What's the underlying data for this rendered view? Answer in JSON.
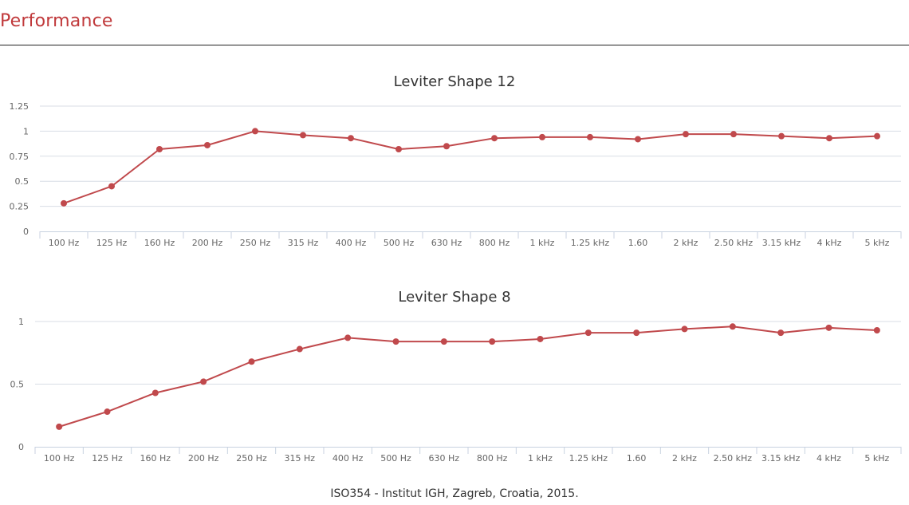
{
  "header": {
    "title": "Performance"
  },
  "footer": {
    "note": "ISO354 - Institut IGH, Zagreb, Croatia, 2015."
  },
  "colors": {
    "accent": "#c0393b",
    "series": "#c0494c",
    "grid": "#d8dde6"
  },
  "chart_data": [
    {
      "type": "line",
      "title": "Leviter Shape 12",
      "categories": [
        "100 Hz",
        "125 Hz",
        "160 Hz",
        "200 Hz",
        "250 Hz",
        "315 Hz",
        "400 Hz",
        "500 Hz",
        "630 Hz",
        "800 Hz",
        "1 kHz",
        "1.25 kHz",
        "1.60",
        "2 kHz",
        "2.50 kHz",
        "3.15 kHz",
        "4 kHz",
        "5 kHz"
      ],
      "y_ticks": [
        "0",
        "0.25",
        "0.5",
        "0.75",
        "1",
        "1.25"
      ],
      "ylim": [
        0,
        1.25
      ],
      "series": [
        {
          "values": [
            0.28,
            0.45,
            0.82,
            0.86,
            1.0,
            0.96,
            0.93,
            0.82,
            0.85,
            0.93,
            0.94,
            0.94,
            0.92,
            0.97,
            0.97,
            0.95,
            0.93,
            0.95
          ]
        }
      ],
      "xlabel": "",
      "ylabel": "",
      "grid": true
    },
    {
      "type": "line",
      "title": "Leviter Shape 8",
      "categories": [
        "100 Hz",
        "125 Hz",
        "160 Hz",
        "200 Hz",
        "250 Hz",
        "315 Hz",
        "400 Hz",
        "500 Hz",
        "630 Hz",
        "800 Hz",
        "1 kHz",
        "1.25 kHz",
        "1.60",
        "2 kHz",
        "2.50 kHz",
        "3.15 kHz",
        "4 kHz",
        "5 kHz"
      ],
      "y_ticks": [
        "0",
        "0.5",
        "1"
      ],
      "ylim": [
        0,
        1
      ],
      "series": [
        {
          "values": [
            0.16,
            0.28,
            0.43,
            0.52,
            0.68,
            0.78,
            0.87,
            0.84,
            0.84,
            0.84,
            0.86,
            0.91,
            0.91,
            0.94,
            0.96,
            0.91,
            0.95,
            0.93
          ]
        }
      ],
      "xlabel": "",
      "ylabel": "",
      "grid": true
    }
  ]
}
